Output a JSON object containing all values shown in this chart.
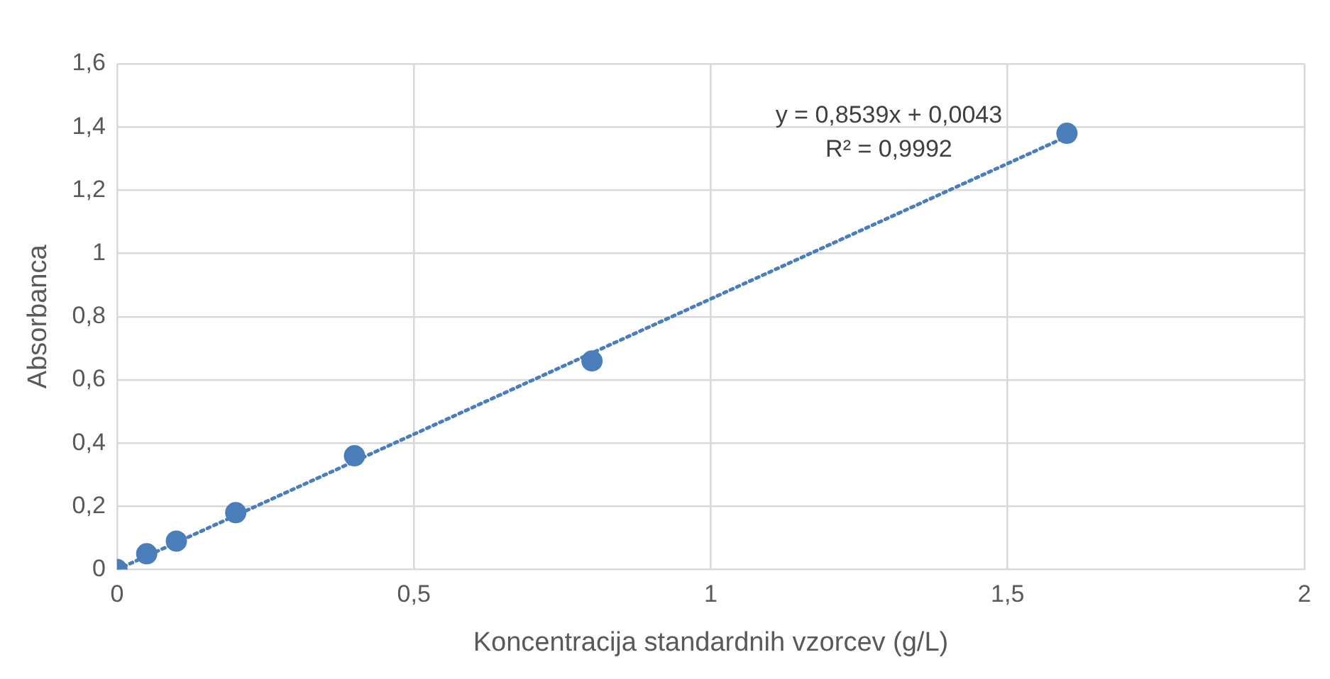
{
  "chart_data": {
    "type": "scatter",
    "xlabel": "Koncentracija standardnih vzorcev (g/L)",
    "ylabel": "Absorbanca",
    "series": [
      {
        "color": "#4a7ebb",
        "x": [
          0,
          0.05,
          0.1,
          0.2,
          0.4,
          0.8,
          1.6
        ],
        "values": [
          0,
          0.05,
          0.09,
          0.18,
          0.36,
          0.66,
          1.38
        ],
        "marker": "circle"
      },
      {
        "type": "line",
        "color": "#4a7ebb",
        "x": [
          0,
          1.6
        ],
        "values": [
          0,
          1.37
        ],
        "line_style": "dotted"
      }
    ],
    "annotations": [
      "y = 0,8539x + 0,0043",
      "R² = 0,9992"
    ],
    "xlim": [
      0,
      2
    ],
    "xticks": [
      0,
      {
        "value": 0.5,
        "label": "0,5"
      },
      1,
      {
        "value": 1.5,
        "label": "1,5"
      },
      2
    ],
    "ylim": [
      0,
      1.6
    ],
    "yticks": [
      0,
      {
        "value": 0.2,
        "label": "0,2"
      },
      {
        "value": 0.4,
        "label": "0,4"
      },
      {
        "value": 0.6,
        "label": "0,6"
      },
      {
        "value": 0.8,
        "label": "0,8"
      },
      1,
      {
        "value": 1.2,
        "label": "1,2"
      },
      {
        "value": 1.4,
        "label": "1,4"
      },
      {
        "value": 1.6,
        "label": "1,6"
      }
    ],
    "grid": true,
    "legend": false
  }
}
